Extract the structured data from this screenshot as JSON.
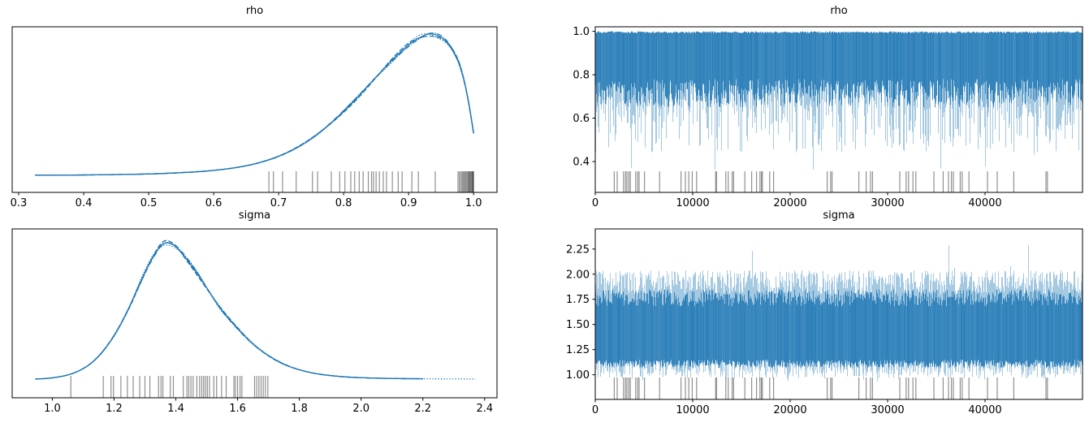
{
  "figure": {
    "background": "#ffffff"
  },
  "colors": {
    "kde_line": "#1f77b4",
    "trace_light": "rgba(31,119,180,0.40)",
    "trace_core": "rgba(31,119,180,0.85)",
    "rug": "rgba(70,70,70,0.60)",
    "axis": "#000000",
    "text": "#000000"
  },
  "chart_data": [
    {
      "id": "rho-posterior",
      "type": "line",
      "plot_kind": "kde",
      "title": "rho",
      "xlabel": "",
      "ylabel": "",
      "grid": false,
      "legend": false,
      "xlim": [
        0.29,
        1.036
      ],
      "xticks": [
        0.3,
        0.4,
        0.5,
        0.6,
        0.7,
        0.8,
        0.9,
        1.0
      ],
      "xtick_labels": [
        "0.3",
        "0.4",
        "0.5",
        "0.6",
        "0.7",
        "0.8",
        "0.9",
        "1.0"
      ],
      "n_chains": 4,
      "linestyles": [
        "solid",
        "dashed",
        "dashdot",
        "dotted"
      ],
      "chain_xmax": [
        1.0,
        1.0,
        1.0,
        1.0
      ],
      "kde": {
        "x": [
          0.325,
          0.35,
          0.4,
          0.45,
          0.5,
          0.54,
          0.58,
          0.61,
          0.64,
          0.67,
          0.7,
          0.73,
          0.76,
          0.79,
          0.82,
          0.85,
          0.875,
          0.9,
          0.915,
          0.93,
          0.945,
          0.96,
          0.975,
          0.985,
          0.9925,
          1.0
        ],
        "density": [
          0.013,
          0.013,
          0.014,
          0.017,
          0.021,
          0.028,
          0.038,
          0.051,
          0.07,
          0.1,
          0.145,
          0.21,
          0.3,
          0.415,
          0.55,
          0.7,
          0.82,
          0.925,
          0.97,
          1.0,
          0.99,
          0.935,
          0.82,
          0.68,
          0.52,
          0.31
        ]
      },
      "rug_values": [
        0.685,
        0.692,
        0.706,
        0.727,
        0.752,
        0.76,
        0.781,
        0.794,
        0.802,
        0.811,
        0.817,
        0.824,
        0.83,
        0.838,
        0.843,
        0.846,
        0.85,
        0.855,
        0.861,
        0.866,
        0.875,
        0.884,
        0.89,
        0.905,
        0.915,
        0.941,
        0.976,
        0.978,
        0.98,
        0.982,
        0.9835,
        0.985,
        0.9865,
        0.988,
        0.9895,
        0.991,
        0.992,
        0.993,
        0.994,
        0.995,
        0.996,
        0.997,
        0.998,
        0.9985,
        0.999,
        0.9995,
        1.0
      ]
    },
    {
      "id": "rho-trace",
      "type": "line",
      "plot_kind": "trace",
      "title": "rho",
      "xlabel": "",
      "ylabel": "",
      "grid": false,
      "legend": false,
      "xlim": [
        0,
        50000
      ],
      "xticks": [
        0,
        10000,
        20000,
        30000,
        40000
      ],
      "xtick_labels": [
        "0",
        "10000",
        "20000",
        "30000",
        "40000"
      ],
      "ylim": [
        0.258,
        1.021
      ],
      "yticks": [
        0.4,
        0.6,
        0.8,
        1.0
      ],
      "ytick_labels": [
        "0.4",
        "0.6",
        "0.8",
        "1.0"
      ],
      "band": {
        "top_range": [
          0.992,
          1.0
        ],
        "top_spike_p": 0,
        "top_spike_add": 0,
        "core_high_range": null,
        "core_low_range": [
          0.65,
          0.78
        ],
        "whisker_floor": 0.44,
        "whisker_pow": 2.4,
        "deep_p": 0.013,
        "deep_range": [
          0.34,
          0.46
        ]
      },
      "rug_x": [
        1950,
        2250,
        2900,
        3100,
        3250,
        3450,
        3600,
        4150,
        4350,
        4500,
        5050,
        6600,
        8800,
        9250,
        9600,
        9950,
        10400,
        12350,
        12450,
        13400,
        13650,
        14050,
        14200,
        15350,
        16050,
        16550,
        16900,
        17050,
        17150,
        17900,
        18300,
        23800,
        24150,
        24300,
        27050,
        27800,
        28250,
        28450,
        31250,
        31900,
        32150,
        32600,
        32900,
        34750,
        35700,
        36250,
        36550,
        36750,
        37450,
        37650,
        38350,
        40250,
        41250,
        42950,
        46250,
        46400
      ]
    },
    {
      "id": "sigma-posterior",
      "type": "line",
      "plot_kind": "kde",
      "title": "sigma",
      "xlabel": "",
      "ylabel": "",
      "grid": false,
      "legend": false,
      "xlim": [
        0.87,
        2.44
      ],
      "xticks": [
        1.0,
        1.2,
        1.4,
        1.6,
        1.8,
        2.0,
        2.2,
        2.4
      ],
      "xtick_labels": [
        "1.0",
        "1.2",
        "1.4",
        "1.6",
        "1.8",
        "2.0",
        "2.2",
        "2.4"
      ],
      "n_chains": 4,
      "linestyles": [
        "solid",
        "dashed",
        "dashdot",
        "dotted"
      ],
      "chain_xmax": [
        2.21,
        2.23,
        2.24,
        2.37
      ],
      "kde": {
        "x": [
          0.945,
          0.98,
          1.01,
          1.05,
          1.09,
          1.13,
          1.17,
          1.21,
          1.25,
          1.29,
          1.325,
          1.36,
          1.395,
          1.43,
          1.47,
          1.51,
          1.55,
          1.6,
          1.65,
          1.7,
          1.75,
          1.8,
          1.86,
          1.93,
          2.0,
          2.1,
          2.2,
          2.3,
          2.37
        ],
        "density": [
          0.018,
          0.022,
          0.03,
          0.048,
          0.082,
          0.14,
          0.235,
          0.37,
          0.545,
          0.745,
          0.9,
          1.0,
          0.985,
          0.9,
          0.78,
          0.645,
          0.515,
          0.385,
          0.272,
          0.188,
          0.126,
          0.085,
          0.055,
          0.037,
          0.028,
          0.022,
          0.02,
          0.019,
          0.018
        ]
      },
      "rug_values": [
        1.06,
        1.165,
        1.19,
        1.198,
        1.222,
        1.243,
        1.262,
        1.283,
        1.3,
        1.316,
        1.344,
        1.352,
        1.358,
        1.382,
        1.392,
        1.424,
        1.436,
        1.442,
        1.449,
        1.456,
        1.468,
        1.477,
        1.484,
        1.49,
        1.496,
        1.502,
        1.509,
        1.523,
        1.532,
        1.548,
        1.563,
        1.588,
        1.593,
        1.6,
        1.608,
        1.614,
        1.655,
        1.662,
        1.669,
        1.676,
        1.683,
        1.69,
        1.698
      ]
    },
    {
      "id": "sigma-trace",
      "type": "line",
      "plot_kind": "trace",
      "title": "sigma",
      "xlabel": "",
      "ylabel": "",
      "grid": false,
      "legend": false,
      "xlim": [
        0,
        50000
      ],
      "xticks": [
        0,
        10000,
        20000,
        30000,
        40000
      ],
      "xtick_labels": [
        "0",
        "10000",
        "20000",
        "30000",
        "40000"
      ],
      "ylim": [
        0.755,
        2.45
      ],
      "yticks": [
        1.0,
        1.25,
        1.5,
        1.75,
        2.0,
        2.25
      ],
      "ytick_labels": [
        "1.00",
        "1.25",
        "1.50",
        "1.75",
        "2.00",
        "2.25"
      ],
      "band": {
        "top_range": [
          1.8,
          2.04
        ],
        "top_spike_p": 0.018,
        "top_spike_add": 0.34,
        "core_high_range": [
          1.68,
          1.85
        ],
        "core_low_range": [
          1.07,
          1.15
        ],
        "whisker_floor": 0.96,
        "whisker_pow": 2.0,
        "deep_p": 0.012,
        "deep_range": [
          0.93,
          0.99
        ]
      },
      "rug_x": [
        1950,
        2250,
        2900,
        3100,
        3250,
        3450,
        3600,
        4150,
        4350,
        4500,
        5050,
        6600,
        8800,
        9250,
        9600,
        9950,
        10400,
        12350,
        12450,
        13400,
        13650,
        14050,
        14200,
        15350,
        16050,
        16550,
        16900,
        17050,
        17150,
        17900,
        18300,
        23800,
        24150,
        24300,
        27050,
        27800,
        28250,
        28450,
        31250,
        31900,
        32150,
        32600,
        32900,
        34750,
        35700,
        36250,
        36550,
        36750,
        37450,
        37650,
        38350,
        40250,
        41250,
        42950,
        46250,
        46400
      ]
    }
  ]
}
